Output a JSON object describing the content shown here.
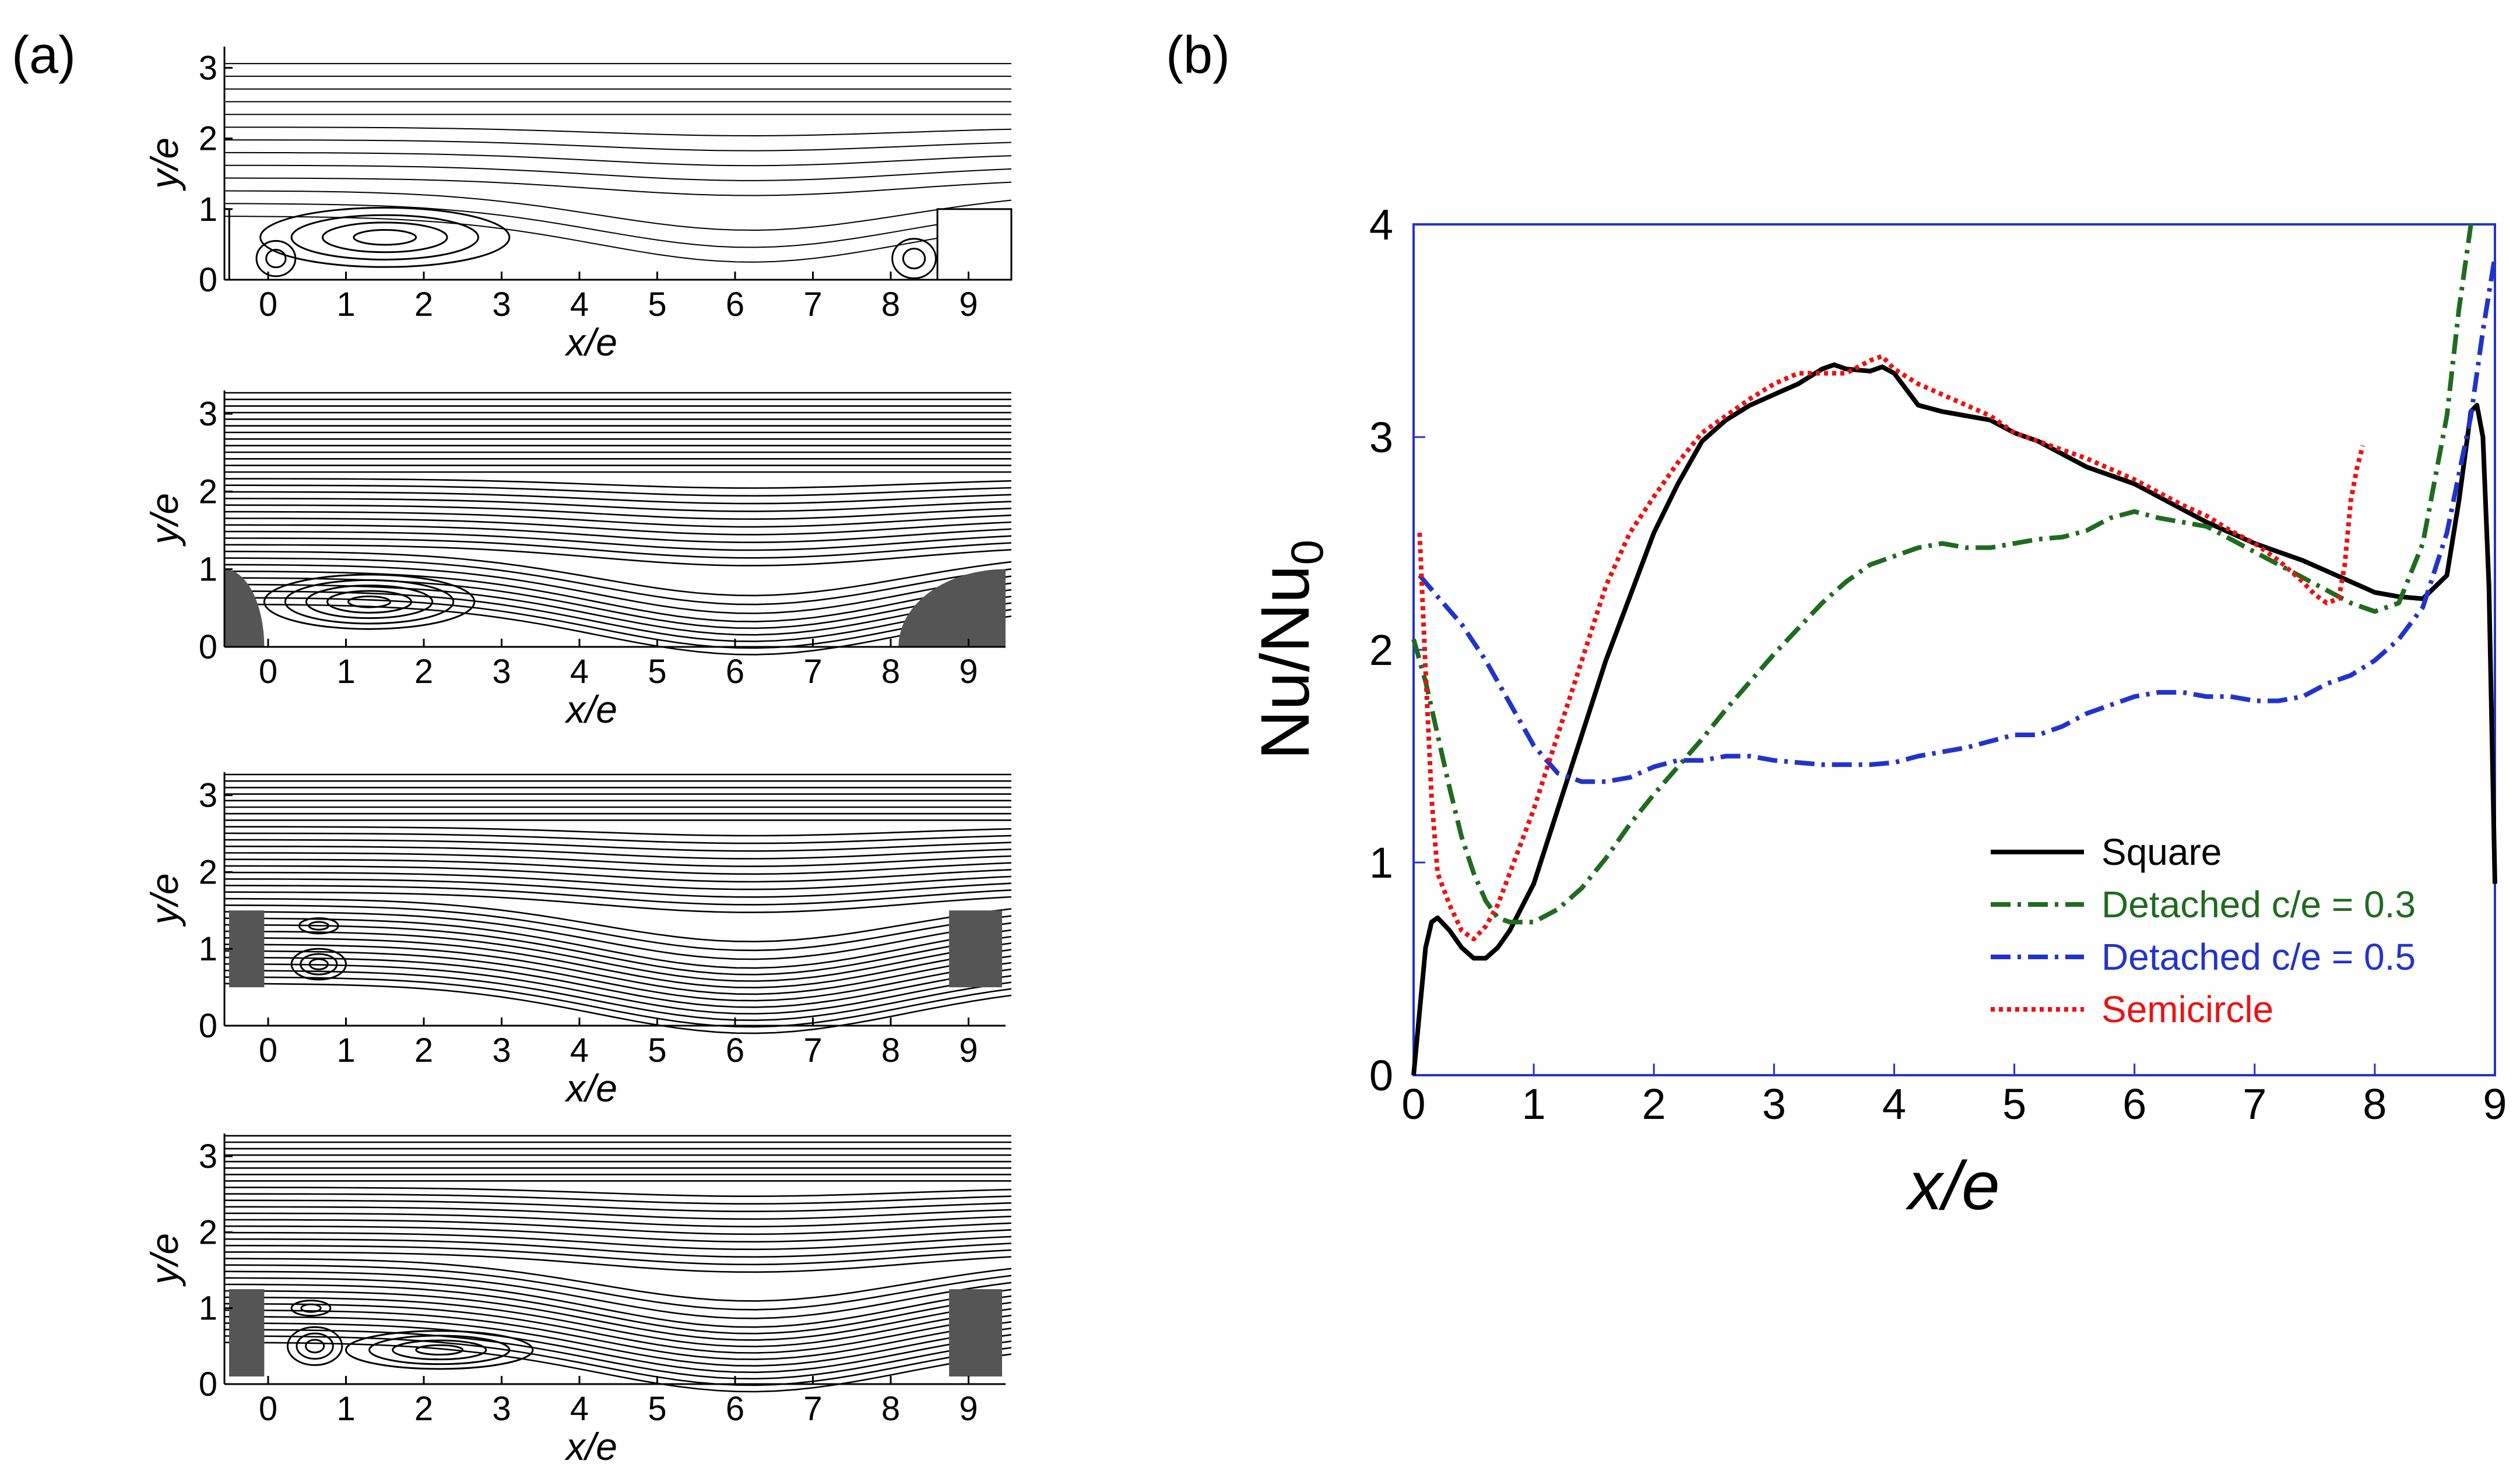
{
  "panel_a": {
    "label": "(a)",
    "subplots": [
      {
        "id": "square",
        "xlabel": "x/e",
        "ylabel": "y/e",
        "xticks": [
          "0",
          "1",
          "2",
          "3",
          "4",
          "5",
          "6",
          "7",
          "8",
          "9"
        ],
        "yticks": [
          "0",
          "1",
          "2",
          "3"
        ],
        "obstacle": "square"
      },
      {
        "id": "semicircle",
        "xlabel": "x/e",
        "ylabel": "y/e",
        "xticks": [
          "0",
          "1",
          "2",
          "3",
          "4",
          "5",
          "6",
          "7",
          "8",
          "9"
        ],
        "yticks": [
          "0",
          "1",
          "2",
          "3"
        ],
        "obstacle": "semicircle"
      },
      {
        "id": "detached_03",
        "xlabel": "x/e",
        "ylabel": "y/e",
        "xticks": [
          "0",
          "1",
          "2",
          "3",
          "4",
          "5",
          "6",
          "7",
          "8",
          "9"
        ],
        "yticks": [
          "0",
          "1",
          "2",
          "3"
        ],
        "obstacle": "detached-high"
      },
      {
        "id": "detached_05",
        "xlabel": "x/e",
        "ylabel": "y/e",
        "xticks": [
          "0",
          "1",
          "2",
          "3",
          "4",
          "5",
          "6",
          "7",
          "8",
          "9"
        ],
        "yticks": [
          "0",
          "1",
          "2",
          "3"
        ],
        "obstacle": "detached-low"
      }
    ]
  },
  "panel_b": {
    "label": "(b)"
  },
  "chart_data": {
    "type": "line",
    "xlabel": "x/e",
    "ylabel_main": "Nu/Nu",
    "ylabel_sub": "0",
    "xlim": [
      0,
      9
    ],
    "ylim": [
      0,
      4
    ],
    "xticks": [
      "0",
      "1",
      "2",
      "3",
      "4",
      "5",
      "6",
      "7",
      "8",
      "9"
    ],
    "yticks": [
      "0",
      "1",
      "2",
      "3",
      "4"
    ],
    "series": [
      {
        "name": "Square",
        "color": "#000000",
        "dash": "solid",
        "x": [
          0,
          0.05,
          0.1,
          0.15,
          0.2,
          0.3,
          0.4,
          0.5,
          0.6,
          0.7,
          0.8,
          1.0,
          1.2,
          1.4,
          1.6,
          1.8,
          2.0,
          2.2,
          2.4,
          2.6,
          2.8,
          3.0,
          3.2,
          3.4,
          3.5,
          3.6,
          3.8,
          3.9,
          4.0,
          4.2,
          4.4,
          4.6,
          4.8,
          5.0,
          5.2,
          5.4,
          5.6,
          5.8,
          6.0,
          6.2,
          6.4,
          6.6,
          6.8,
          7.0,
          7.2,
          7.4,
          7.6,
          7.8,
          8.0,
          8.2,
          8.4,
          8.6,
          8.7,
          8.8,
          8.85,
          8.9,
          8.95,
          9.0
        ],
        "y": [
          0,
          0.3,
          0.6,
          0.72,
          0.74,
          0.68,
          0.6,
          0.55,
          0.55,
          0.6,
          0.68,
          0.9,
          1.25,
          1.6,
          1.95,
          2.25,
          2.55,
          2.78,
          2.98,
          3.08,
          3.15,
          3.2,
          3.25,
          3.32,
          3.34,
          3.32,
          3.31,
          3.33,
          3.3,
          3.15,
          3.12,
          3.1,
          3.08,
          3.02,
          2.98,
          2.92,
          2.86,
          2.82,
          2.78,
          2.72,
          2.66,
          2.6,
          2.55,
          2.5,
          2.46,
          2.42,
          2.37,
          2.32,
          2.27,
          2.25,
          2.24,
          2.35,
          2.7,
          3.12,
          3.15,
          3.0,
          2.3,
          0.9
        ]
      },
      {
        "name": "Detached c/e = 0.3",
        "color": "#1f6b1f",
        "dash": "dashdot",
        "x": [
          0,
          0.1,
          0.2,
          0.3,
          0.4,
          0.5,
          0.6,
          0.7,
          0.8,
          1.0,
          1.2,
          1.4,
          1.6,
          1.8,
          2.0,
          2.2,
          2.4,
          2.6,
          2.8,
          3.0,
          3.2,
          3.4,
          3.6,
          3.8,
          4.0,
          4.2,
          4.4,
          4.6,
          4.8,
          5.0,
          5.2,
          5.4,
          5.6,
          5.8,
          6.0,
          6.2,
          6.4,
          6.6,
          6.8,
          7.0,
          7.2,
          7.4,
          7.6,
          7.8,
          8.0,
          8.2,
          8.4,
          8.6,
          8.7,
          8.8
        ],
        "y": [
          2.05,
          1.85,
          1.6,
          1.35,
          1.12,
          0.95,
          0.82,
          0.74,
          0.72,
          0.72,
          0.78,
          0.88,
          1.02,
          1.18,
          1.32,
          1.45,
          1.58,
          1.72,
          1.85,
          1.98,
          2.1,
          2.22,
          2.32,
          2.4,
          2.44,
          2.48,
          2.5,
          2.48,
          2.48,
          2.5,
          2.52,
          2.53,
          2.56,
          2.62,
          2.65,
          2.62,
          2.6,
          2.58,
          2.52,
          2.46,
          2.4,
          2.34,
          2.28,
          2.22,
          2.18,
          2.22,
          2.5,
          3.1,
          3.6,
          4.0
        ]
      },
      {
        "name": "Detached c/e = 0.5",
        "color": "#2233cc",
        "dash": "dashdot",
        "x": [
          0.05,
          0.2,
          0.4,
          0.6,
          0.8,
          1.0,
          1.2,
          1.4,
          1.6,
          1.8,
          2.0,
          2.2,
          2.4,
          2.6,
          2.8,
          3.0,
          3.2,
          3.4,
          3.6,
          3.8,
          4.0,
          4.2,
          4.4,
          4.6,
          4.8,
          5.0,
          5.2,
          5.4,
          5.6,
          5.8,
          6.0,
          6.2,
          6.4,
          6.6,
          6.8,
          7.0,
          7.2,
          7.4,
          7.6,
          7.8,
          8.0,
          8.2,
          8.4,
          8.6,
          8.8,
          8.9,
          9.0
        ],
        "y": [
          2.35,
          2.25,
          2.12,
          1.95,
          1.75,
          1.55,
          1.42,
          1.38,
          1.38,
          1.4,
          1.45,
          1.48,
          1.48,
          1.5,
          1.5,
          1.48,
          1.47,
          1.46,
          1.46,
          1.46,
          1.47,
          1.5,
          1.52,
          1.54,
          1.57,
          1.6,
          1.6,
          1.64,
          1.7,
          1.74,
          1.78,
          1.8,
          1.8,
          1.78,
          1.78,
          1.76,
          1.76,
          1.78,
          1.84,
          1.88,
          1.95,
          2.05,
          2.2,
          2.55,
          3.1,
          3.5,
          3.85
        ]
      },
      {
        "name": "Semicircle",
        "color": "#ee1111",
        "dash": "dotted",
        "x": [
          0.05,
          0.1,
          0.15,
          0.2,
          0.3,
          0.4,
          0.5,
          0.6,
          0.7,
          0.8,
          1.0,
          1.2,
          1.4,
          1.6,
          1.8,
          2.0,
          2.2,
          2.4,
          2.6,
          2.8,
          3.0,
          3.2,
          3.4,
          3.6,
          3.8,
          3.9,
          4.0,
          4.2,
          4.4,
          4.6,
          4.8,
          5.0,
          5.2,
          5.4,
          5.6,
          5.8,
          6.0,
          6.2,
          6.4,
          6.6,
          6.8,
          7.0,
          7.2,
          7.4,
          7.5,
          7.6,
          7.7,
          7.75,
          7.8,
          7.85,
          7.9
        ],
        "y": [
          2.55,
          1.9,
          1.3,
          0.95,
          0.8,
          0.68,
          0.64,
          0.7,
          0.8,
          0.95,
          1.25,
          1.6,
          1.95,
          2.3,
          2.55,
          2.72,
          2.88,
          3.02,
          3.1,
          3.18,
          3.25,
          3.3,
          3.3,
          3.3,
          3.36,
          3.38,
          3.32,
          3.25,
          3.2,
          3.15,
          3.1,
          3.02,
          2.98,
          2.94,
          2.9,
          2.85,
          2.8,
          2.74,
          2.68,
          2.63,
          2.56,
          2.5,
          2.42,
          2.32,
          2.26,
          2.22,
          2.24,
          2.4,
          2.7,
          2.85,
          2.96
        ]
      }
    ],
    "legend": {
      "position": "lower-right",
      "entries": [
        {
          "label": "Square",
          "color": "#000000",
          "text_color": "#000000"
        },
        {
          "label": "Detached c/e = 0.3",
          "color": "#1f6b1f",
          "text_color": "#1f6b1f"
        },
        {
          "label": "Detached c/e = 0.5",
          "color": "#2233cc",
          "text_color": "#2233cc"
        },
        {
          "label": "Semicircle",
          "color": "#ee1111",
          "text_color": "#ee1111"
        }
      ]
    },
    "frame_color": "#2233cc"
  }
}
